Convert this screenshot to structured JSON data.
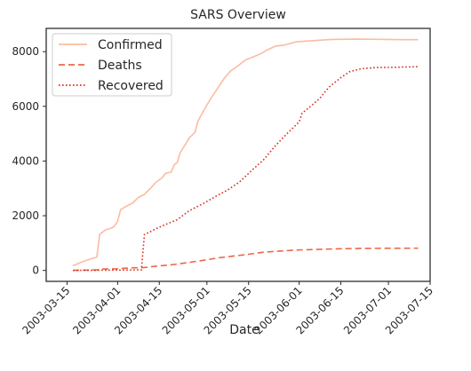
{
  "chart_data": {
    "type": "line",
    "title": "SARS Overview",
    "xlabel": "Date",
    "ylabel": "",
    "xlim": [
      "2003-03-08",
      "2003-07-15"
    ],
    "ylim": [
      -400,
      8850
    ],
    "xticks": [
      "2003-03-15",
      "2003-04-01",
      "2003-04-15",
      "2003-05-01",
      "2003-05-15",
      "2003-06-01",
      "2003-06-15",
      "2003-07-01",
      "2003-07-15"
    ],
    "yticks": [
      0,
      2000,
      4000,
      6000,
      8000
    ],
    "grid": false,
    "legend_position": "top-left",
    "series": [
      {
        "name": "Confirmed",
        "color": "#fcbba1",
        "style": "solid",
        "points": [
          [
            "2003-03-17",
            167
          ],
          [
            "2003-03-19",
            264
          ],
          [
            "2003-03-21",
            350
          ],
          [
            "2003-03-24",
            456
          ],
          [
            "2003-03-25",
            487
          ],
          [
            "2003-03-26",
            1323
          ],
          [
            "2003-03-28",
            1485
          ],
          [
            "2003-03-30",
            1550
          ],
          [
            "2003-03-31",
            1622
          ],
          [
            "2003-04-01",
            1804
          ],
          [
            "2003-04-02",
            2223
          ],
          [
            "2003-04-04",
            2353
          ],
          [
            "2003-04-06",
            2460
          ],
          [
            "2003-04-08",
            2671
          ],
          [
            "2003-04-10",
            2781
          ],
          [
            "2003-04-12",
            3000
          ],
          [
            "2003-04-14",
            3235
          ],
          [
            "2003-04-16",
            3389
          ],
          [
            "2003-04-17",
            3547
          ],
          [
            "2003-04-19",
            3600
          ],
          [
            "2003-04-20",
            3861
          ],
          [
            "2003-04-21",
            3947
          ],
          [
            "2003-04-22",
            4300
          ],
          [
            "2003-04-24",
            4649
          ],
          [
            "2003-04-25",
            4836
          ],
          [
            "2003-04-27",
            5050
          ],
          [
            "2003-04-28",
            5462
          ],
          [
            "2003-04-30",
            5865
          ],
          [
            "2003-05-02",
            6234
          ],
          [
            "2003-05-05",
            6727
          ],
          [
            "2003-05-07",
            7053
          ],
          [
            "2003-05-09",
            7296
          ],
          [
            "2003-05-11",
            7447
          ],
          [
            "2003-05-14",
            7699
          ],
          [
            "2003-05-17",
            7828
          ],
          [
            "2003-05-19",
            7919
          ],
          [
            "2003-05-21",
            8046
          ],
          [
            "2003-05-24",
            8202
          ],
          [
            "2003-05-27",
            8240
          ],
          [
            "2003-05-31",
            8360
          ],
          [
            "2003-06-05",
            8398
          ],
          [
            "2003-06-12",
            8445
          ],
          [
            "2003-06-20",
            8460
          ],
          [
            "2003-06-28",
            8450
          ],
          [
            "2003-07-05",
            8437
          ],
          [
            "2003-07-11",
            8437
          ]
        ]
      },
      {
        "name": "Deaths",
        "color": "#ef6548",
        "style": "dashed",
        "points": [
          [
            "2003-03-17",
            4
          ],
          [
            "2003-03-21",
            11
          ],
          [
            "2003-03-25",
            17
          ],
          [
            "2003-03-26",
            49
          ],
          [
            "2003-04-01",
            62
          ],
          [
            "2003-04-05",
            89
          ],
          [
            "2003-04-10",
            106
          ],
          [
            "2003-04-15",
            165
          ],
          [
            "2003-04-20",
            217
          ],
          [
            "2003-04-25",
            293
          ],
          [
            "2003-04-30",
            372
          ],
          [
            "2003-05-05",
            461
          ],
          [
            "2003-05-10",
            526
          ],
          [
            "2003-05-15",
            590
          ],
          [
            "2003-05-20",
            666
          ],
          [
            "2003-05-25",
            704
          ],
          [
            "2003-05-31",
            744
          ],
          [
            "2003-06-10",
            779
          ],
          [
            "2003-06-20",
            804
          ],
          [
            "2003-06-30",
            812
          ],
          [
            "2003-07-11",
            813
          ]
        ]
      },
      {
        "name": "Recovered",
        "color": "#d7301f",
        "style": "dotted",
        "points": [
          [
            "2003-03-17",
            0
          ],
          [
            "2003-03-25",
            5
          ],
          [
            "2003-04-04",
            15
          ],
          [
            "2003-04-09",
            20
          ],
          [
            "2003-04-10",
            1311
          ],
          [
            "2003-04-14",
            1529
          ],
          [
            "2003-04-17",
            1674
          ],
          [
            "2003-04-21",
            1853
          ],
          [
            "2003-04-25",
            2179
          ],
          [
            "2003-04-30",
            2459
          ],
          [
            "2003-05-04",
            2710
          ],
          [
            "2003-05-08",
            2941
          ],
          [
            "2003-05-12",
            3238
          ],
          [
            "2003-05-16",
            3650
          ],
          [
            "2003-05-20",
            4041
          ],
          [
            "2003-05-24",
            4559
          ],
          [
            "2003-05-28",
            5011
          ],
          [
            "2003-06-01",
            5433
          ],
          [
            "2003-06-02",
            5750
          ],
          [
            "2003-06-05",
            6015
          ],
          [
            "2003-06-08",
            6300
          ],
          [
            "2003-06-11",
            6700
          ],
          [
            "2003-06-15",
            7050
          ],
          [
            "2003-06-18",
            7270
          ],
          [
            "2003-06-22",
            7378
          ],
          [
            "2003-06-27",
            7420
          ],
          [
            "2003-07-04",
            7430
          ],
          [
            "2003-07-11",
            7452
          ]
        ]
      }
    ]
  }
}
